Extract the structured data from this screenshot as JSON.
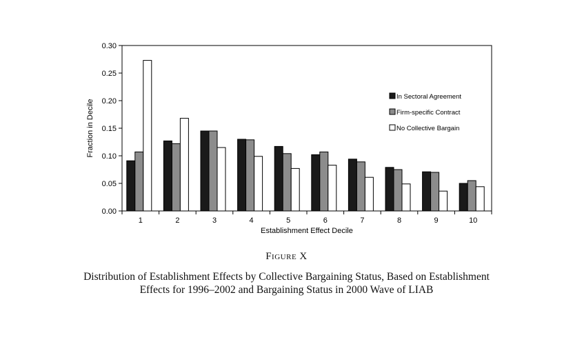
{
  "figure": {
    "label": "Figure X",
    "caption": "Distribution of Establishment Effects by Collective Bargaining Status, Based on Establishment Effects for 1996–2002 and Bargaining Status in 2000 Wave of LIAB"
  },
  "chart_data": {
    "type": "bar",
    "title": "",
    "xlabel": "Establishment Effect Decile",
    "ylabel": "Fraction in Decile",
    "ylim": [
      0,
      0.3
    ],
    "yticks": [
      "0.00",
      "0.05",
      "0.10",
      "0.15",
      "0.20",
      "0.25",
      "0.30"
    ],
    "categories": [
      "1",
      "2",
      "3",
      "4",
      "5",
      "6",
      "7",
      "8",
      "9",
      "10"
    ],
    "legend_position": "right",
    "grid": false,
    "series": [
      {
        "name": "In Sectoral Agreement",
        "color": "#1a1a1a",
        "values": [
          0.091,
          0.127,
          0.145,
          0.13,
          0.117,
          0.102,
          0.094,
          0.079,
          0.071,
          0.05
        ]
      },
      {
        "name": "Firm-specific Contract",
        "color": "#8c8c8c",
        "values": [
          0.107,
          0.122,
          0.145,
          0.129,
          0.104,
          0.107,
          0.089,
          0.075,
          0.07,
          0.055
        ]
      },
      {
        "name": "No Collective Bargain",
        "color": "#ffffff",
        "values": [
          0.273,
          0.168,
          0.115,
          0.099,
          0.077,
          0.083,
          0.061,
          0.049,
          0.036,
          0.044
        ]
      }
    ]
  }
}
